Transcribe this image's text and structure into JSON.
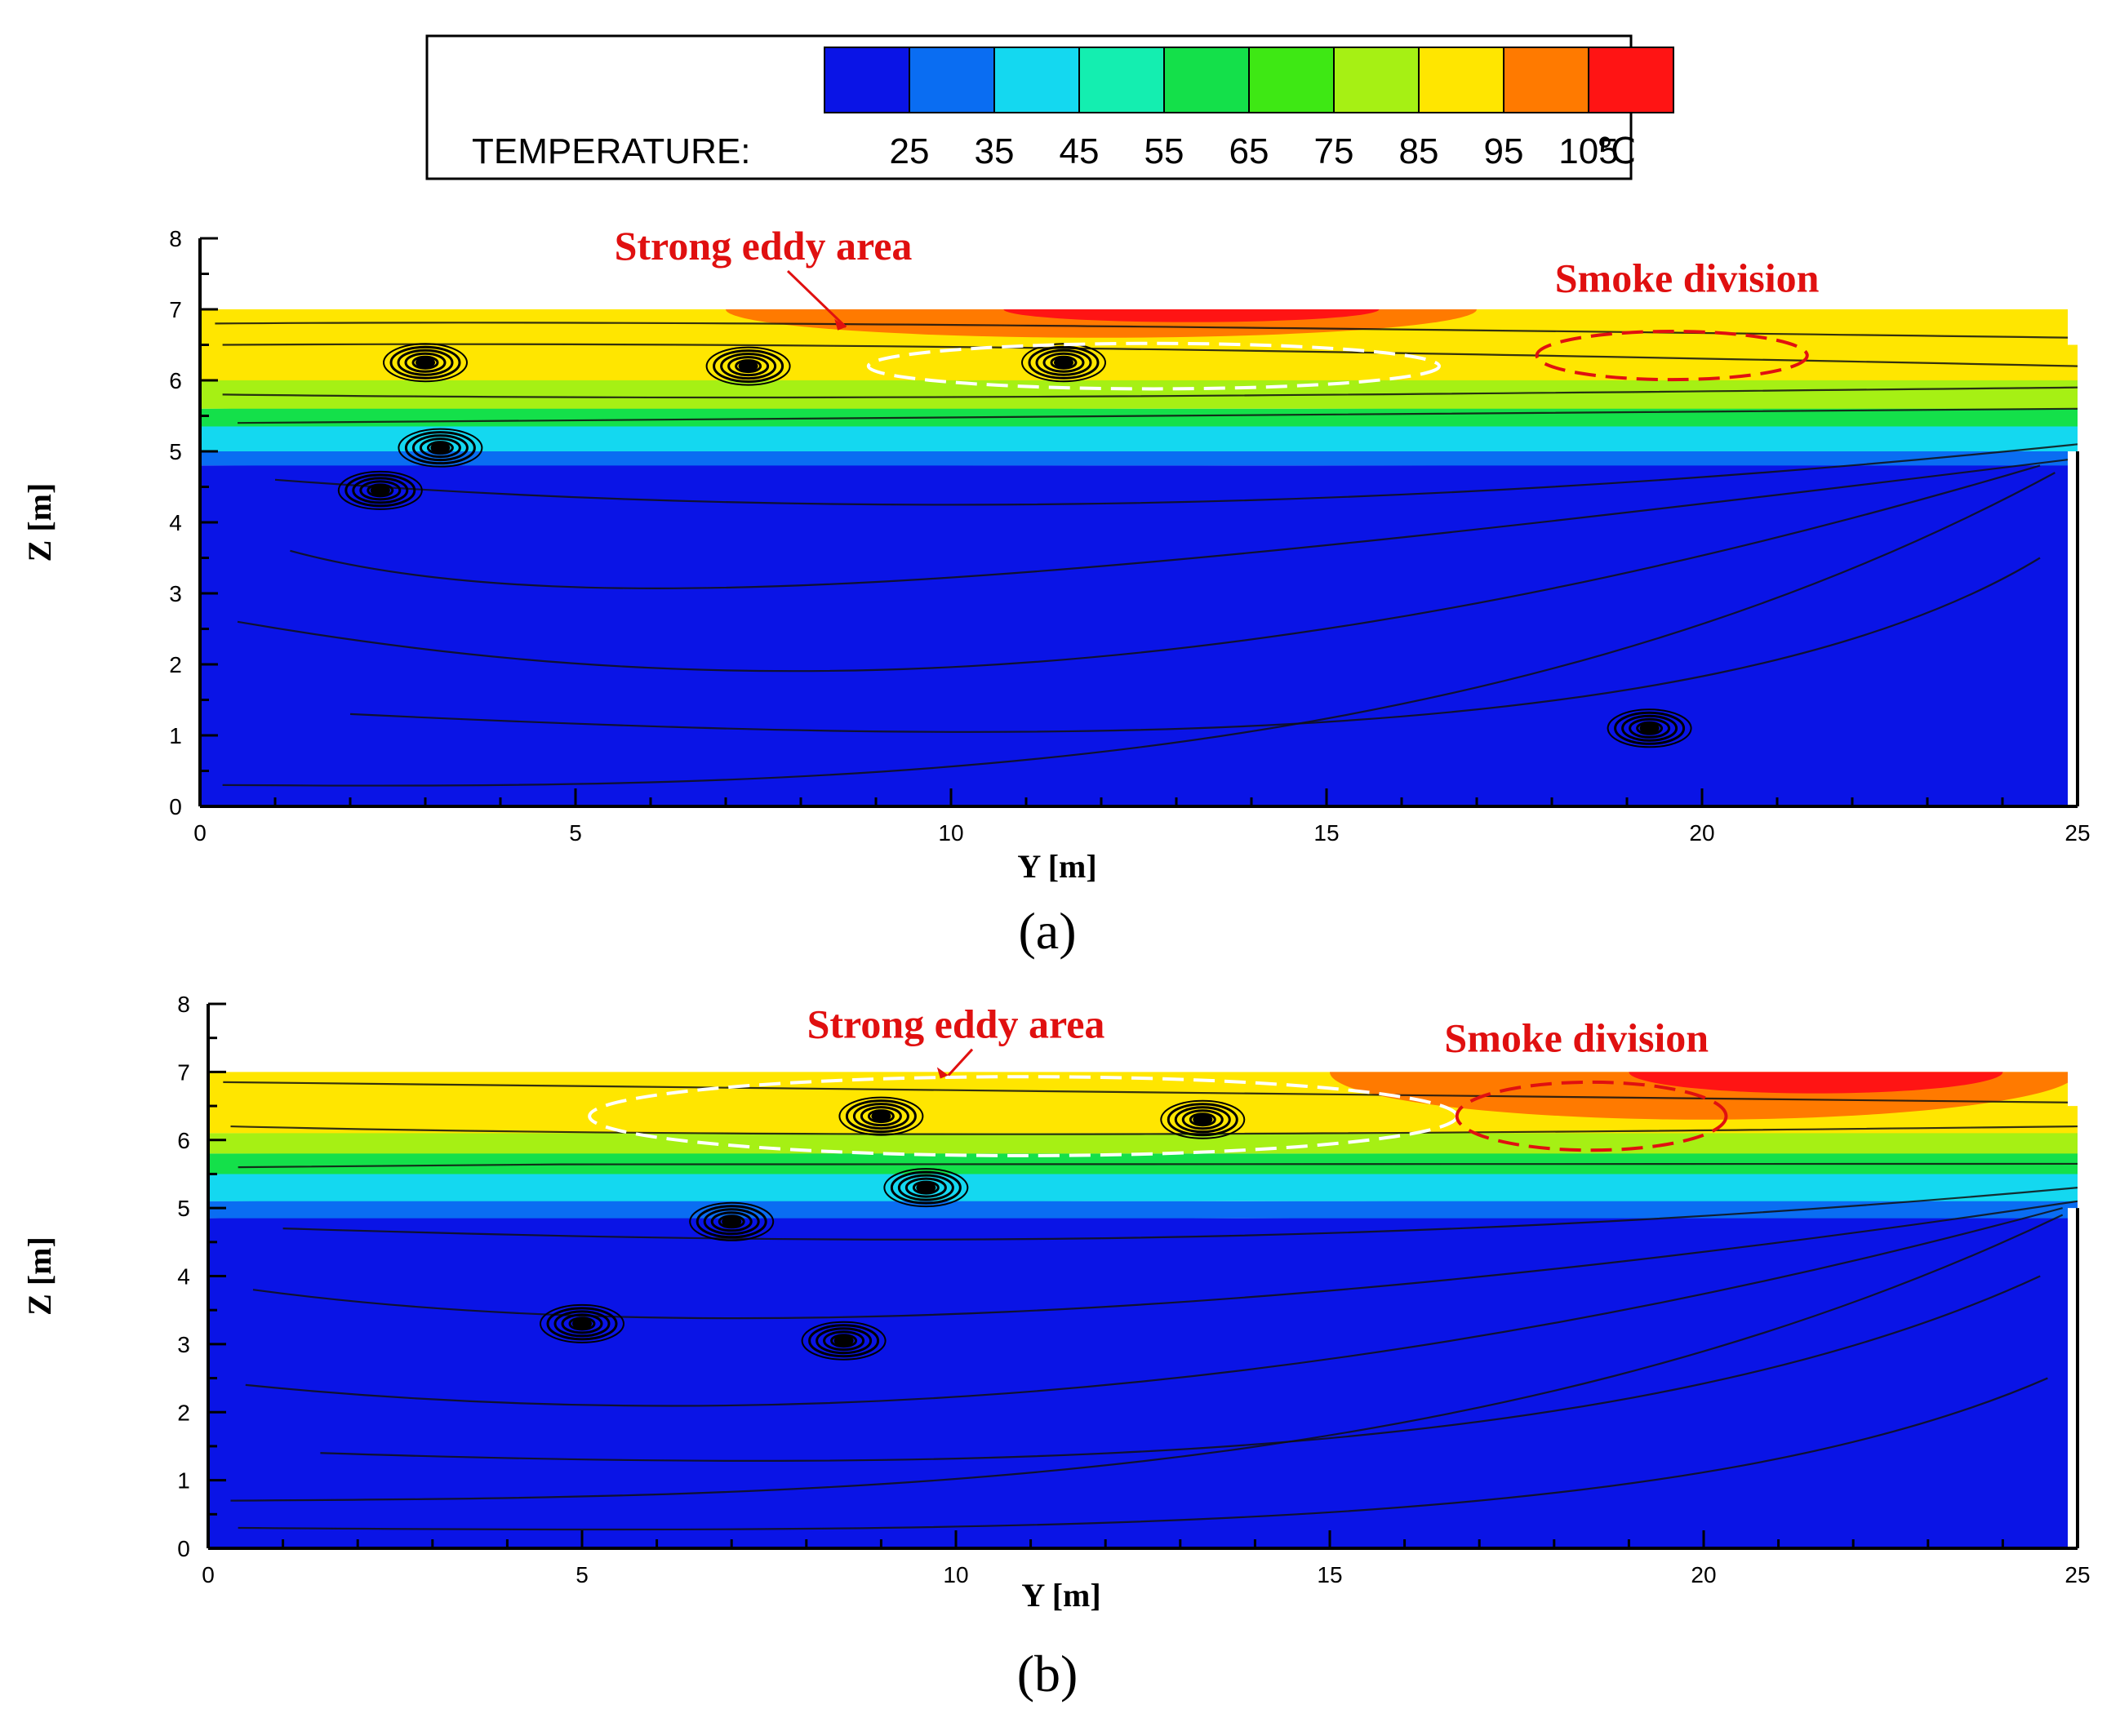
{
  "legend": {
    "title": "TEMPERATURE:",
    "unit": "℃",
    "levels": [
      25,
      35,
      45,
      55,
      65,
      75,
      85,
      95,
      105
    ],
    "colors": [
      "#0a14e6",
      "#0a6df2",
      "#14d8f0",
      "#14eeb0",
      "#14e04a",
      "#3ee814",
      "#a6f014",
      "#ffe600",
      "#ff7a00",
      "#ff1414"
    ]
  },
  "chart_data": [
    {
      "type": "heatmap",
      "panel_label": "(a)",
      "xlabel": "Y [m]",
      "ylabel": "Z [m]",
      "xlim": [
        0,
        25
      ],
      "ylim": [
        0,
        8
      ],
      "xticks": [
        0,
        5,
        10,
        15,
        20,
        25
      ],
      "yticks": [
        0,
        1,
        2,
        3,
        4,
        5,
        6,
        7,
        8
      ],
      "ceiling_z": 7,
      "outlet": {
        "y": 25,
        "z_from": 5,
        "z_to": 6.5
      },
      "layers": [
        {
          "z_from": 6.0,
          "z_to": 7.0,
          "temperature": 95,
          "y_from": 0,
          "y_to": 25
        },
        {
          "z_from": 6.6,
          "z_to": 7.0,
          "temperature": 105,
          "y_from": 7,
          "y_to": 17
        },
        {
          "z_from": 5.6,
          "z_to": 6.0,
          "temperature": 85
        },
        {
          "z_from": 5.35,
          "z_to": 5.6,
          "temperature": 65
        },
        {
          "z_from": 5.0,
          "z_to": 5.35,
          "temperature": 45
        },
        {
          "z_from": 4.8,
          "z_to": 5.0,
          "temperature": 35
        },
        {
          "z_from": 0,
          "z_to": 4.8,
          "temperature": 25
        }
      ],
      "vortices": [
        {
          "y": 3.0,
          "z": 6.25
        },
        {
          "y": 7.3,
          "z": 6.2
        },
        {
          "y": 11.5,
          "z": 6.25
        },
        {
          "y": 3.2,
          "z": 5.05
        },
        {
          "y": 2.4,
          "z": 4.45
        },
        {
          "y": 19.3,
          "z": 1.1
        }
      ],
      "annotations": [
        {
          "text": "Strong eddy area",
          "y": 7.5,
          "z": 7.7,
          "ellipse": {
            "cy": 12.7,
            "cz": 6.2,
            "ry_half": 3.8,
            "rz_half": 0.32,
            "color": "#ffffff"
          }
        },
        {
          "text": "Smoke division",
          "y": 19.8,
          "z": 7.25,
          "ellipse": {
            "cy": 19.6,
            "cz": 6.35,
            "ry_half": 1.8,
            "rz_half": 0.34,
            "color": "#e01010"
          }
        }
      ]
    },
    {
      "type": "heatmap",
      "panel_label": "(b)",
      "xlabel": "Y [m]",
      "ylabel": "Z [m]",
      "xlim": [
        0,
        25
      ],
      "ylim": [
        0,
        8
      ],
      "xticks": [
        0,
        5,
        10,
        15,
        20,
        25
      ],
      "yticks": [
        0,
        1,
        2,
        3,
        4,
        5,
        6,
        7,
        8
      ],
      "ceiling_z": 7,
      "outlet": {
        "y": 25,
        "z_from": 5,
        "z_to": 6.5
      },
      "layers": [
        {
          "z_from": 6.1,
          "z_to": 7.0,
          "temperature": 95,
          "y_from": 0,
          "y_to": 25
        },
        {
          "z_from": 6.3,
          "z_to": 7.0,
          "temperature": 105,
          "y_from": 15,
          "y_to": 25
        },
        {
          "z_from": 5.8,
          "z_to": 6.1,
          "temperature": 85
        },
        {
          "z_from": 5.5,
          "z_to": 5.8,
          "temperature": 65
        },
        {
          "z_from": 5.1,
          "z_to": 5.5,
          "temperature": 45
        },
        {
          "z_from": 4.85,
          "z_to": 5.1,
          "temperature": 35
        },
        {
          "z_from": 0,
          "z_to": 4.85,
          "temperature": 25
        }
      ],
      "vortices": [
        {
          "y": 9.0,
          "z": 6.35
        },
        {
          "y": 13.3,
          "z": 6.3
        },
        {
          "y": 9.6,
          "z": 5.3
        },
        {
          "y": 7.0,
          "z": 4.8
        },
        {
          "y": 5.0,
          "z": 3.3
        },
        {
          "y": 8.5,
          "z": 3.05
        }
      ],
      "annotations": [
        {
          "text": "Strong eddy area",
          "y": 10.0,
          "z": 7.5,
          "ellipse": {
            "cy": 10.9,
            "cz": 6.35,
            "ry_half": 5.8,
            "rz_half": 0.58,
            "color": "#ffffff"
          }
        },
        {
          "text": "Smoke division",
          "y": 18.3,
          "z": 7.3,
          "ellipse": {
            "cy": 18.5,
            "cz": 6.35,
            "ry_half": 1.8,
            "rz_half": 0.5,
            "color": "#e01010"
          }
        }
      ]
    }
  ]
}
